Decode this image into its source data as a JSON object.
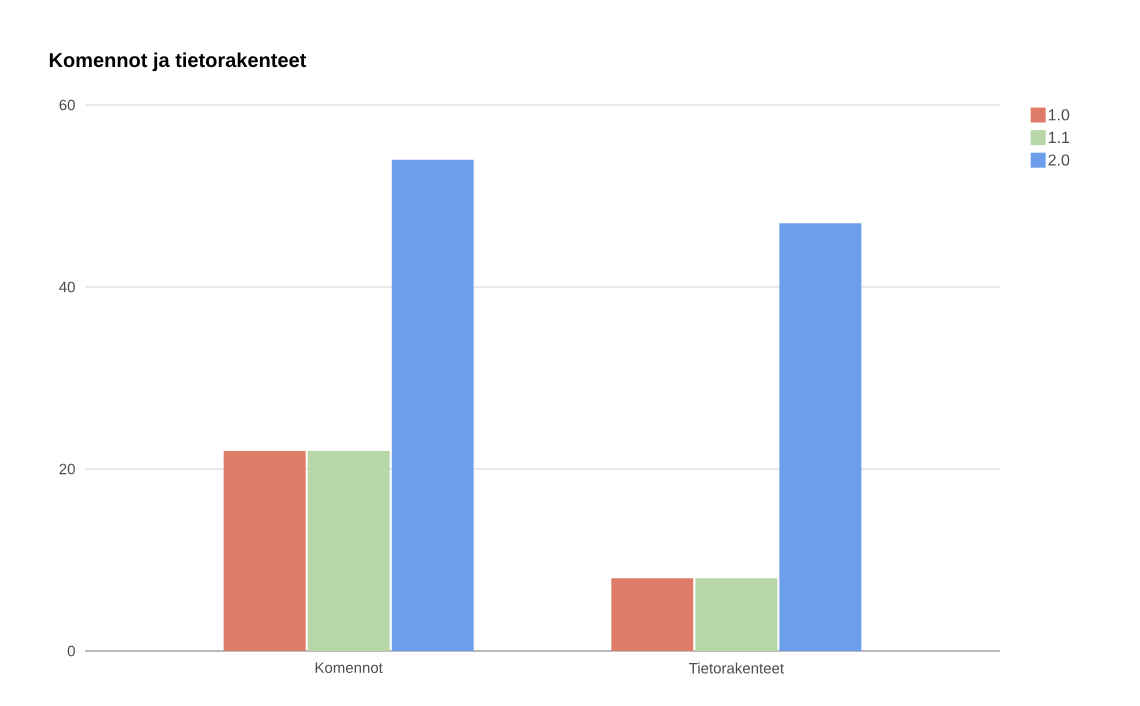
{
  "chart_data": {
    "type": "bar",
    "title": "Komennot ja tietorakenteet",
    "categories": [
      "Komennot",
      "Tietorakenteet"
    ],
    "series": [
      {
        "name": "1.0",
        "color": "#de7c68",
        "values": [
          22,
          8
        ]
      },
      {
        "name": "1.1",
        "color": "#b7d7a8",
        "values": [
          22,
          8
        ]
      },
      {
        "name": "2.0",
        "color": "#6d9eeb",
        "values": [
          54,
          47
        ]
      }
    ],
    "ylim": [
      0,
      60
    ],
    "yticks": [
      0,
      20,
      40,
      60
    ],
    "grid": "y",
    "legend": "top right"
  }
}
